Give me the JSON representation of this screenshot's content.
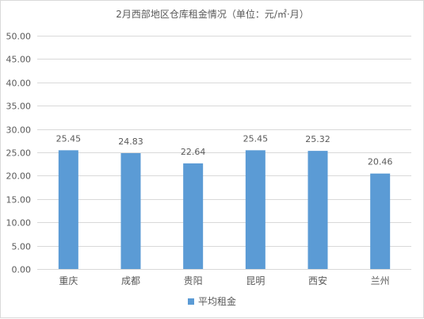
{
  "chart_data": {
    "type": "bar",
    "title": "2月西部地区仓库租金情况（单位：元/㎡·月）",
    "categories": [
      "重庆",
      "成都",
      "贵阳",
      "昆明",
      "西安",
      "兰州"
    ],
    "series": [
      {
        "name": "平均租金",
        "values": [
          25.45,
          24.83,
          22.64,
          25.45,
          25.32,
          20.46
        ],
        "data_labels": [
          "25.45",
          "24.83",
          "22.64",
          "25.45",
          "25.32",
          "20.46"
        ],
        "color": "#5b9bd5"
      }
    ],
    "ylim": [
      0,
      50
    ],
    "y_ticks": [
      "0.00",
      "5.00",
      "10.00",
      "15.00",
      "20.00",
      "25.00",
      "30.00",
      "35.00",
      "40.00",
      "45.00",
      "50.00"
    ],
    "grid": true,
    "legend_position": "bottom",
    "colors": {
      "gridline": "#d9d9d9",
      "text": "#595959",
      "frame": "#d9d9d9"
    }
  }
}
